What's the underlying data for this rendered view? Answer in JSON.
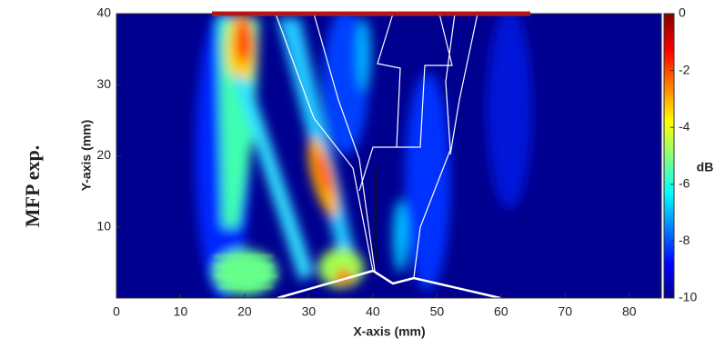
{
  "chart_data": {
    "type": "heatmap",
    "xlabel": "X-axis (mm)",
    "ylabel": "Y-axis (mm)",
    "annotation": "MFP exp.",
    "xlim": [
      0,
      85
    ],
    "xticks": [
      0,
      10,
      20,
      30,
      40,
      50,
      60,
      70,
      80
    ],
    "ylim": [
      0,
      40
    ],
    "yticks": [
      10,
      20,
      30,
      40
    ],
    "zlabel": "dB",
    "zlim": [
      -10,
      0
    ],
    "zticks": [
      0,
      -2,
      -4,
      -6,
      -8,
      -10
    ]
  }
}
